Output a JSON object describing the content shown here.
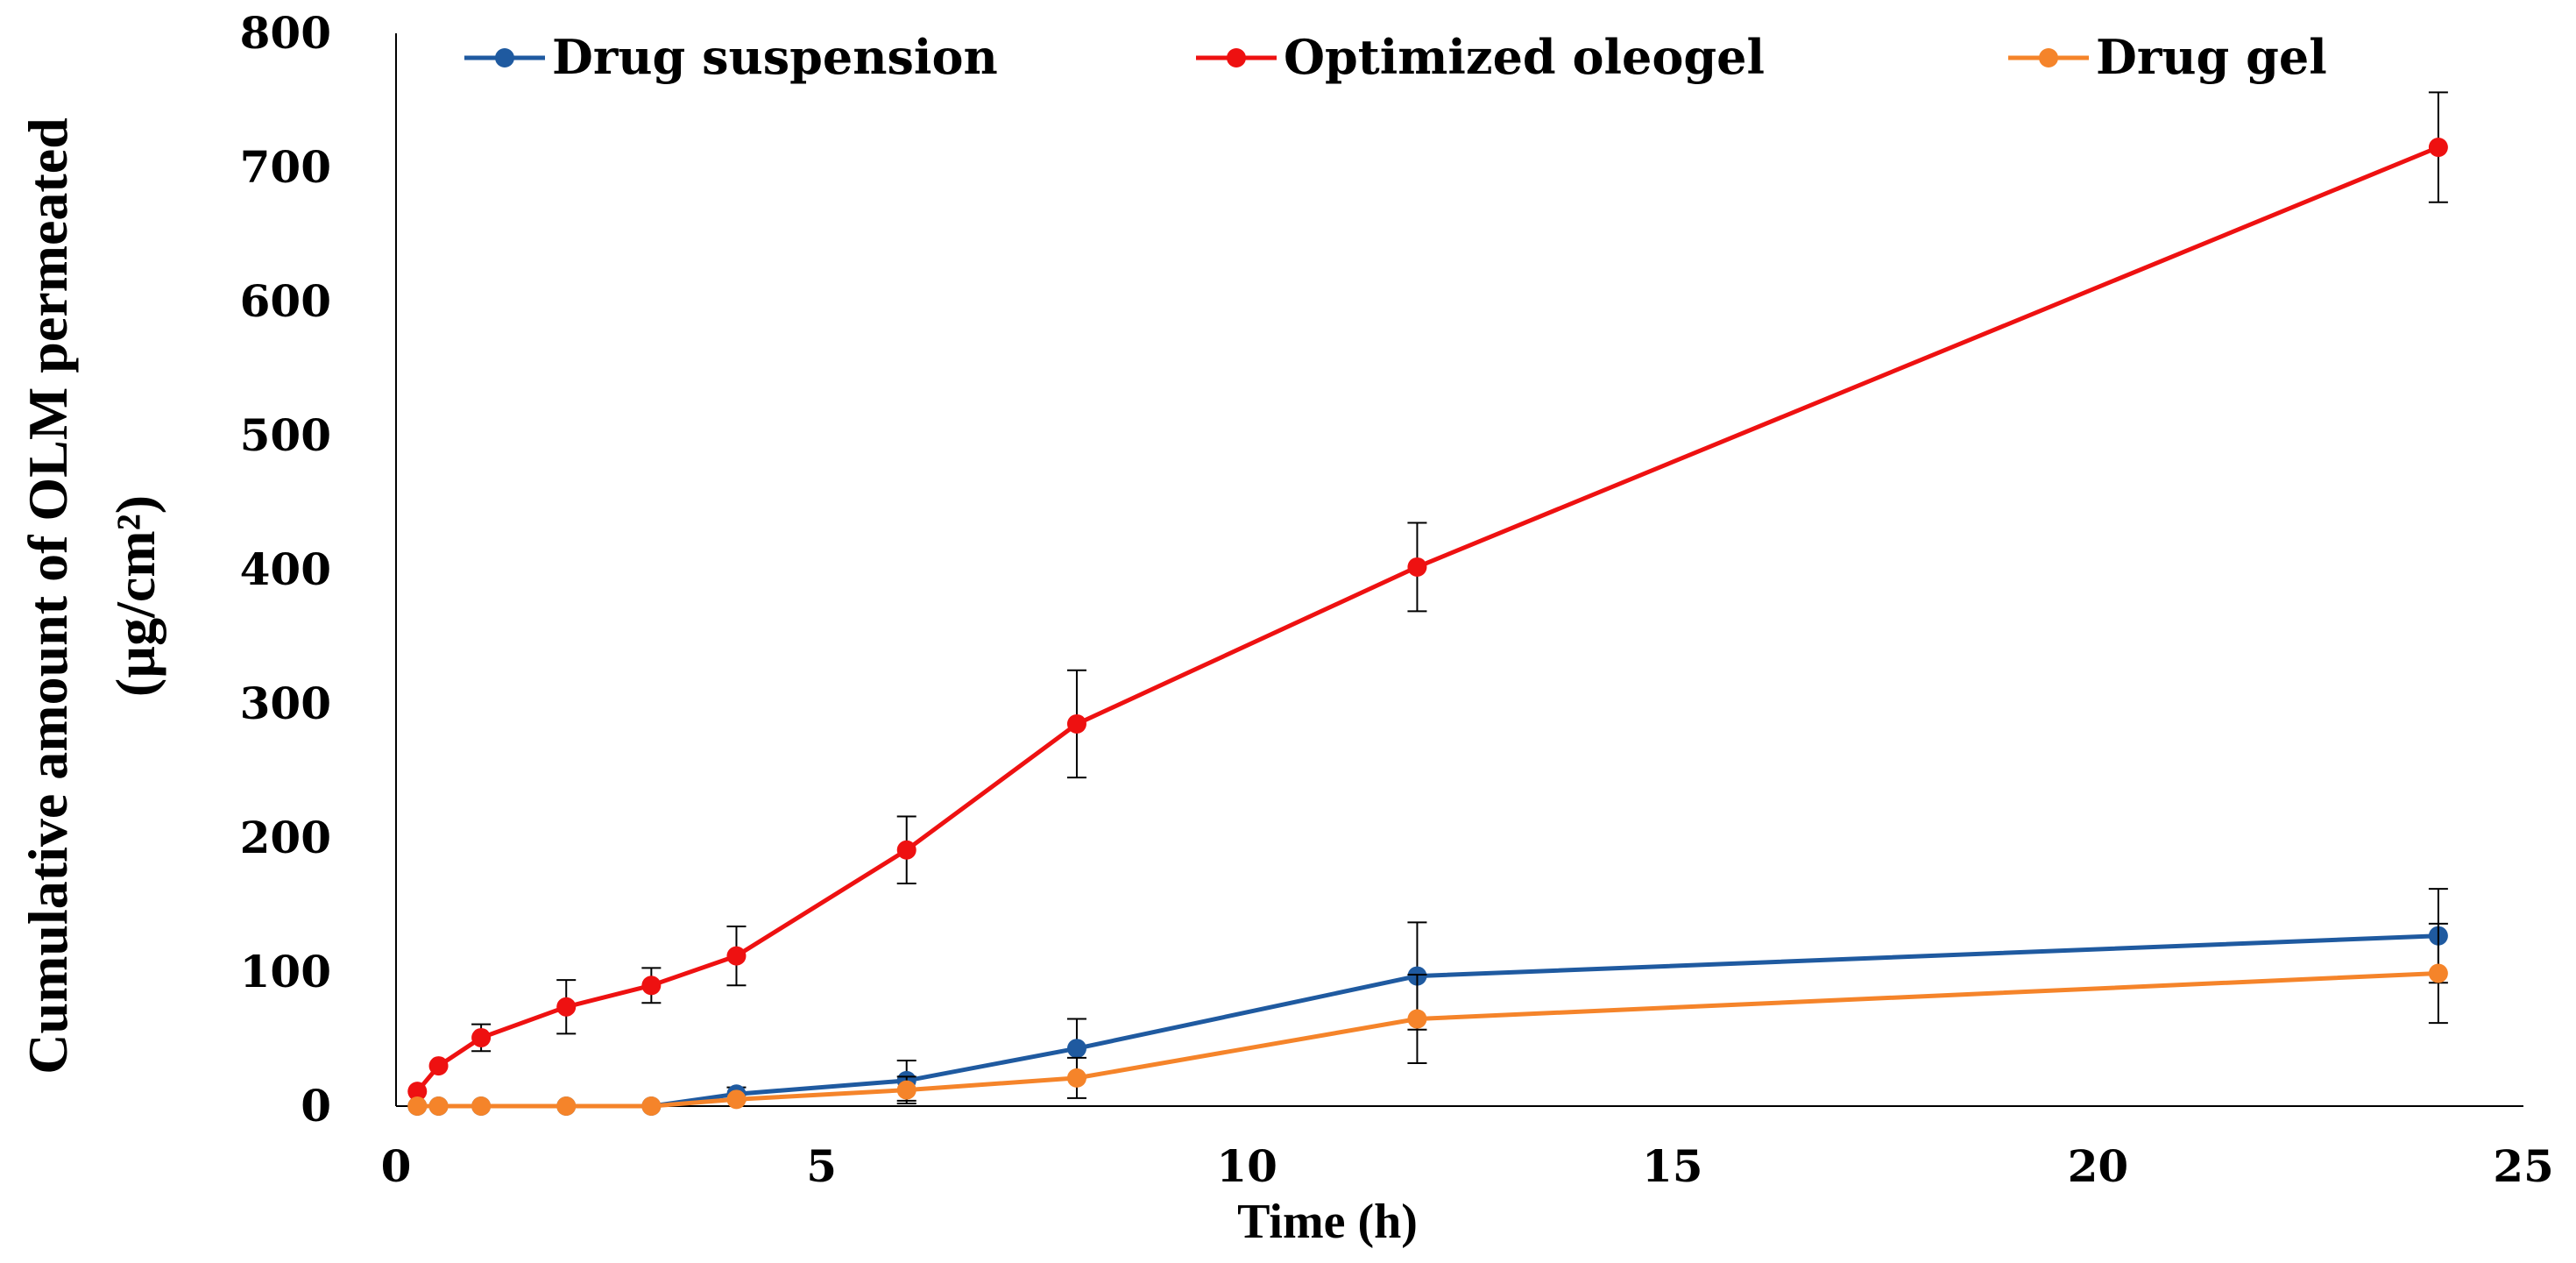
{
  "chart_data": {
    "type": "line",
    "title": "",
    "xlabel": "Time (h)",
    "ylabel_line1": "Cumulative amount of OLM permeated",
    "ylabel_line2": "(µg/cm²)",
    "xlim": [
      0,
      25
    ],
    "ylim": [
      0,
      800
    ],
    "xticks": [
      0,
      5,
      10,
      15,
      20,
      25
    ],
    "yticks": [
      0,
      100,
      200,
      300,
      400,
      500,
      600,
      700,
      800
    ],
    "grid": false,
    "legend_position": "top",
    "series": [
      {
        "name": "Drug suspension",
        "color": "#1f5aa0",
        "x": [
          0.25,
          0.5,
          1,
          2,
          3,
          4,
          6,
          8,
          12,
          24
        ],
        "y": [
          0,
          0,
          0,
          0,
          0,
          9,
          19,
          43,
          97,
          127
        ],
        "err": [
          0,
          0,
          0,
          0,
          0,
          5,
          15,
          22,
          40,
          35
        ]
      },
      {
        "name": "Optimized oleogel",
        "color": "#ee1111",
        "x": [
          0.25,
          0.5,
          1,
          2,
          3,
          4,
          6,
          8,
          12,
          24
        ],
        "y": [
          11,
          30,
          51,
          74,
          90,
          112,
          191,
          285,
          402,
          715
        ],
        "err": [
          0,
          0,
          10,
          20,
          13,
          22,
          25,
          40,
          33,
          41
        ]
      },
      {
        "name": "Drug gel",
        "color": "#f5842a",
        "x": [
          0.25,
          0.5,
          1,
          2,
          3,
          4,
          6,
          8,
          12,
          24
        ],
        "y": [
          0,
          0,
          0,
          0,
          0,
          5,
          12,
          21,
          65,
          99
        ],
        "err": [
          0,
          0,
          0,
          0,
          0,
          0,
          10,
          15,
          33,
          37
        ]
      }
    ]
  }
}
